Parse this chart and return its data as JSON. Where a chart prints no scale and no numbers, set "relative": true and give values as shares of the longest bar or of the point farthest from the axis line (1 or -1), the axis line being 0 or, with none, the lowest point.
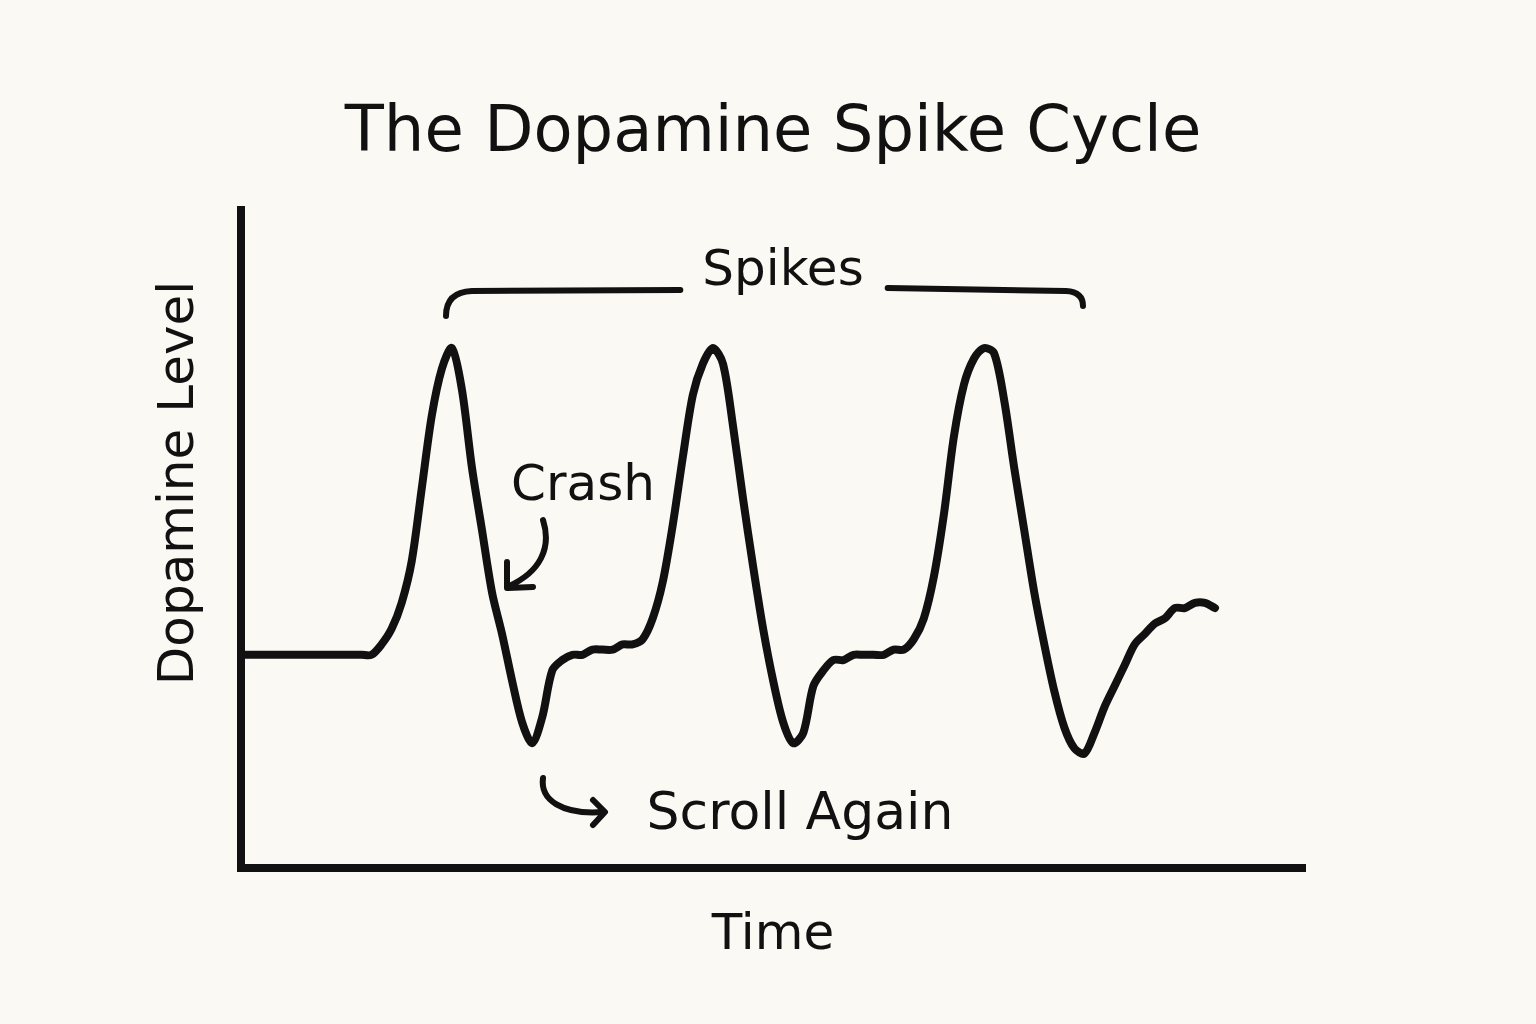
{
  "chart_data": {
    "type": "line",
    "title": "The Dopamine Spike Cycle",
    "xlabel": "Time",
    "ylabel": "Dopamine Level",
    "relative": true,
    "marker": "none",
    "color": "#111111",
    "categories": [
      null,
      null,
      null,
      null,
      null,
      null,
      null,
      null,
      null,
      null,
      null,
      null,
      null,
      null,
      null,
      null,
      null,
      null,
      null,
      null,
      null,
      null,
      null,
      null,
      null,
      null,
      null,
      null,
      null,
      null,
      null,
      null,
      null,
      null,
      null,
      null,
      null,
      null,
      null,
      null,
      null,
      null,
      null,
      null,
      null,
      null,
      null,
      null,
      null,
      null,
      null,
      null,
      null,
      null,
      null,
      null,
      null,
      null,
      null,
      null,
      null,
      null,
      null,
      null,
      null,
      null,
      null,
      null,
      null,
      null,
      null,
      null,
      null,
      null,
      null,
      null,
      null,
      null,
      null,
      null,
      null,
      null,
      null,
      null,
      null,
      null,
      null,
      null,
      null,
      null,
      null,
      null,
      null,
      null,
      null,
      null,
      null,
      null
    ],
    "values": [
      0.41,
      0.41,
      0.41,
      0.41,
      0.41,
      0.41,
      0.41,
      0.41,
      0.41,
      0.41,
      0.41,
      0.41,
      0.41,
      0.41,
      0.43,
      0.46,
      0.51,
      0.59,
      0.73,
      0.87,
      0.96,
      1,
      0.92,
      0.77,
      0.65,
      0.53,
      0.45,
      0.36,
      0.28,
      0.24,
      0.29,
      0.38,
      0.4,
      0.41,
      0.41,
      0.42,
      0.42,
      0.42,
      0.43,
      0.43,
      0.44,
      0.48,
      0.55,
      0.66,
      0.79,
      0.91,
      0.97,
      1,
      0.97,
      0.85,
      0.71,
      0.58,
      0.46,
      0.36,
      0.28,
      0.24,
      0.26,
      0.35,
      0.38,
      0.4,
      0.4,
      0.41,
      0.41,
      0.41,
      0.41,
      0.42,
      0.42,
      0.44,
      0.48,
      0.56,
      0.68,
      0.83,
      0.93,
      0.98,
      1,
      0.99,
      0.9,
      0.77,
      0.65,
      0.53,
      0.43,
      0.34,
      0.27,
      0.23,
      0.22,
      0.26,
      0.31,
      0.35,
      0.39,
      0.43,
      0.45,
      0.47,
      0.48,
      0.5,
      0.5,
      0.51,
      0.51,
      0.5
    ],
    "annotations": [
      "Spikes",
      "Crash",
      "Scroll Again"
    ]
  }
}
